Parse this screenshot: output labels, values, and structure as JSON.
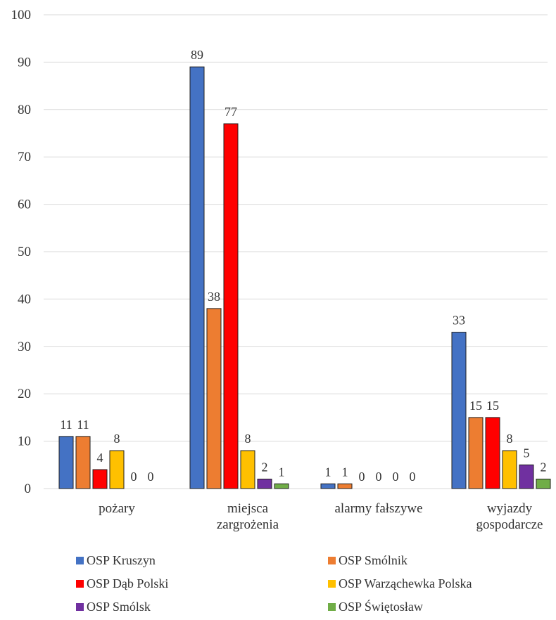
{
  "chart_data": {
    "type": "bar",
    "title": "",
    "xlabel": "",
    "ylabel": "",
    "ylim": [
      0,
      100
    ],
    "yticks": [
      0,
      10,
      20,
      30,
      40,
      50,
      60,
      70,
      80,
      90,
      100
    ],
    "grid": true,
    "legend_position": "bottom",
    "categories": [
      [
        "pożary"
      ],
      [
        "miejsca",
        "zargrożenia"
      ],
      [
        "alarmy fałszywe"
      ],
      [
        "wyjazdy",
        "gospodarcze"
      ]
    ],
    "series": [
      {
        "name": "OSP Kruszyn",
        "color": "#4472c4",
        "values": [
          11,
          89,
          1,
          33
        ]
      },
      {
        "name": "OSP Smólnik",
        "color": "#ed7d31",
        "values": [
          11,
          38,
          1,
          15
        ]
      },
      {
        "name": "OSP Dąb Polski",
        "color": "#ff0000",
        "values": [
          4,
          77,
          0,
          15
        ]
      },
      {
        "name": "OSP Warząchewka Polska",
        "color": "#ffc000",
        "values": [
          8,
          8,
          0,
          8
        ]
      },
      {
        "name": "OSP Smólsk",
        "color": "#7030a0",
        "values": [
          0,
          2,
          0,
          5
        ]
      },
      {
        "name": "OSP Świętosław",
        "color": "#70ad47",
        "values": [
          0,
          1,
          0,
          2
        ]
      }
    ]
  }
}
